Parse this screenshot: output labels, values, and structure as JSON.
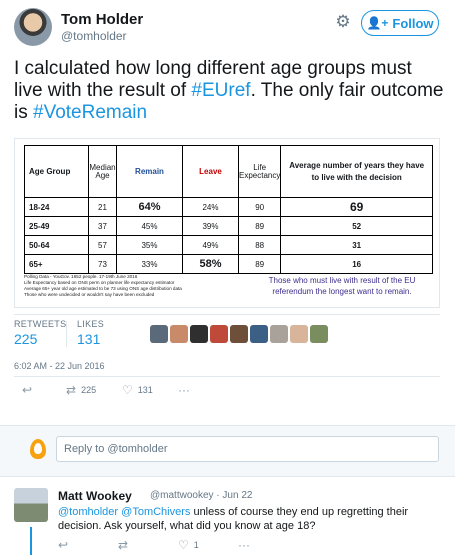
{
  "header": {
    "name": "Tom Holder",
    "handle": "@tomholder",
    "follow_label": "Follow"
  },
  "tweet": {
    "text_before": "I calculated how long different age groups must live with the result of ",
    "hashtag_1": "#EUref",
    "text_middle": ". The only fair outcome is ",
    "hashtag_2": "#VoteRemain"
  },
  "table_image": {
    "headers": {
      "age_group": "Age Group",
      "median_age": "Median Age",
      "remain": "Remain",
      "leave": "Leave",
      "life_expectancy": "Life Expectancy",
      "years": "Average number of years they have to live with the decision"
    },
    "rows": [
      {
        "age": "18-24",
        "median": "21",
        "remain": "64%",
        "leave": "24%",
        "life": "90",
        "years": "69"
      },
      {
        "age": "25-49",
        "median": "37",
        "remain": "45%",
        "leave": "39%",
        "life": "89",
        "years": "52"
      },
      {
        "age": "50-64",
        "median": "57",
        "remain": "35%",
        "leave": "49%",
        "life": "88",
        "years": "31"
      },
      {
        "age": "65+",
        "median": "73",
        "remain": "33%",
        "leave": "58%",
        "life": "89",
        "years": "16"
      }
    ],
    "notes": [
      "Polling Data - YouGov. 1652 people. 17-19th June 2016",
      "Life Expectancy based on ONS perm on planner life expectancy estimator",
      "Average 65+ year old age estimated to be 73 using ONS age distribution data",
      "Those who were undecided or wouldn't say have been excluded"
    ],
    "callout": "Those who must live with result of the EU referendum the longest want to remain."
  },
  "stats": {
    "retweets_label": "RETWEETS",
    "retweets": "225",
    "likes_label": "LIKES",
    "likes": "131"
  },
  "timestamp": "6:02 AM - 22 Jun 2016",
  "actions": {
    "retweets": "225",
    "likes": "131"
  },
  "reply_box": {
    "placeholder": "Reply to @tomholder"
  },
  "reply": {
    "name": "Matt Wookey",
    "handle": "@mattwookey",
    "separator": "·",
    "date": "Jun 22",
    "mention_1": "@tomholder",
    "mention_2": "@TomChivers",
    "text": " unless of course they end up regretting their decision. Ask yourself, what did you know at age 18?",
    "likes": "1"
  },
  "colors": {
    "accent": "#1b95e0",
    "remain": "#1f4e99",
    "leave": "#c00000",
    "egg": "#f7a10f"
  }
}
